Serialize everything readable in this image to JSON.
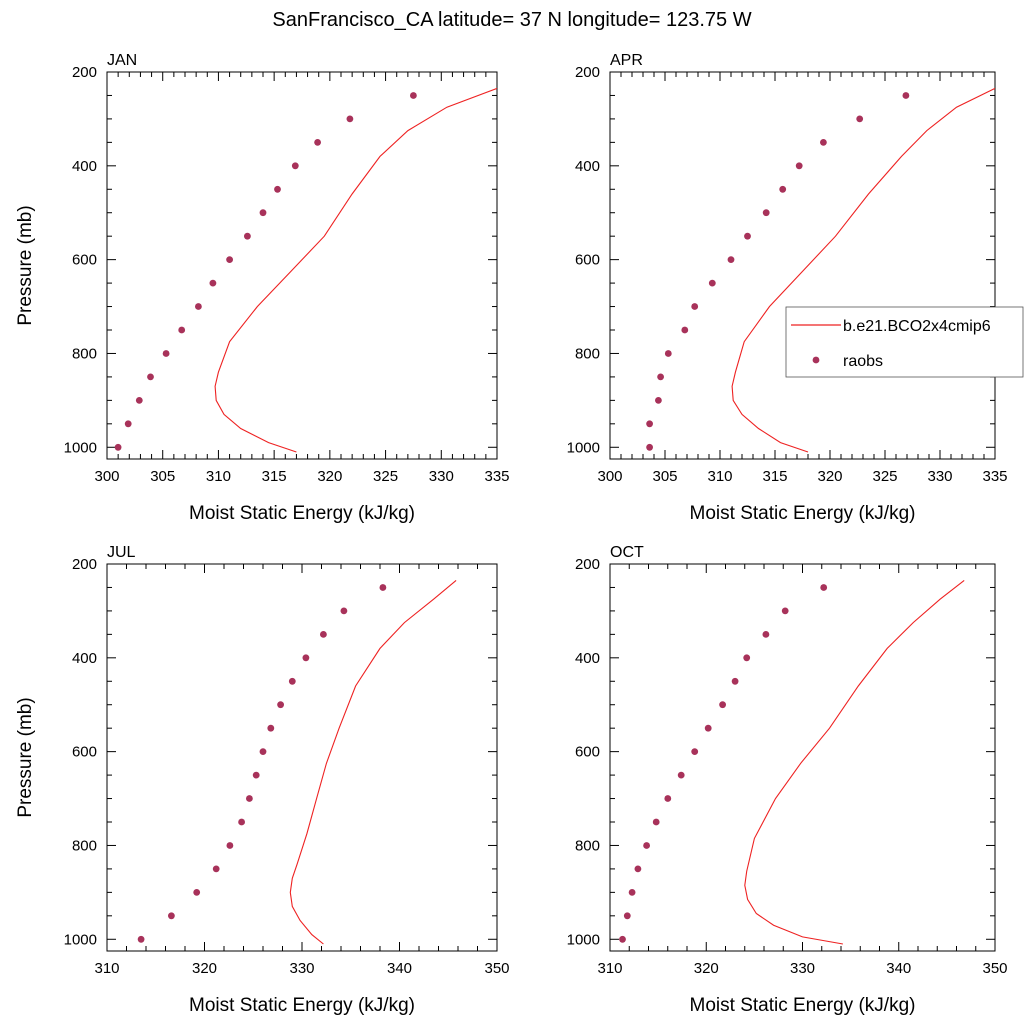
{
  "title": "SanFrancisco_CA  latitude= 37 N longitude= 123.75 W",
  "legend": {
    "entries": [
      {
        "label": "b.e21.BCO2x4cmip6",
        "kind": "line",
        "color": "#ee2222"
      },
      {
        "label": "raobs",
        "kind": "marker",
        "color": "#a8325a"
      }
    ]
  },
  "colors": {
    "model_line": "#ee2222",
    "raobs_marker": "#a8325a"
  },
  "chart_data": [
    {
      "type": "line",
      "title": "JAN",
      "xlabel": "Moist Static Energy (kJ/kg)",
      "ylabel": "Pressure (mb)",
      "xlim": [
        300,
        335
      ],
      "ylim": [
        1025,
        200
      ],
      "xticks": [
        300,
        305,
        310,
        315,
        320,
        325,
        330,
        335
      ],
      "yticks": [
        200,
        400,
        600,
        800,
        1000
      ],
      "series": [
        {
          "name": "b.e21.BCO2x4cmip6",
          "kind": "line",
          "x": [
            317,
            314.5,
            312,
            310.5,
            309.8,
            309.7,
            310.0,
            311.0,
            313.5,
            316.5,
            319.5,
            322.0,
            324.5,
            327.0,
            330.5,
            335.0
          ],
          "y": [
            1010,
            990,
            960,
            930,
            900,
            870,
            840,
            775,
            700,
            625,
            550,
            460,
            380,
            325,
            275,
            235
          ]
        },
        {
          "name": "raobs",
          "kind": "scatter",
          "x": [
            301.0,
            301.9,
            302.9,
            303.9,
            305.3,
            306.7,
            308.2,
            309.5,
            311.0,
            312.6,
            314.0,
            315.3,
            316.9,
            318.9,
            321.8,
            327.5
          ],
          "y": [
            1000,
            950,
            900,
            850,
            800,
            750,
            700,
            650,
            600,
            550,
            500,
            450,
            400,
            350,
            300,
            250
          ]
        }
      ]
    },
    {
      "type": "line",
      "title": "APR",
      "xlabel": "Moist Static Energy (kJ/kg)",
      "ylabel": "",
      "xlim": [
        300,
        335
      ],
      "ylim": [
        1025,
        200
      ],
      "xticks": [
        300,
        305,
        310,
        315,
        320,
        325,
        330,
        335
      ],
      "yticks": [
        200,
        400,
        600,
        800,
        1000
      ],
      "series": [
        {
          "name": "b.e21.BCO2x4cmip6",
          "kind": "line",
          "x": [
            318,
            315.5,
            313.5,
            312,
            311.2,
            311.1,
            311.4,
            312.2,
            314.5,
            317.5,
            320.5,
            323.5,
            326.5,
            328.8,
            331.5,
            335.0
          ],
          "y": [
            1010,
            990,
            960,
            930,
            900,
            870,
            840,
            775,
            700,
            625,
            550,
            460,
            380,
            325,
            275,
            235
          ]
        },
        {
          "name": "raobs",
          "kind": "scatter",
          "x": [
            303.6,
            303.6,
            304.4,
            304.6,
            305.3,
            306.8,
            307.7,
            309.3,
            311.0,
            312.5,
            314.2,
            315.7,
            317.2,
            319.4,
            322.7,
            326.9
          ],
          "y": [
            1000,
            950,
            900,
            850,
            800,
            750,
            700,
            650,
            600,
            550,
            500,
            450,
            400,
            350,
            300,
            250
          ]
        }
      ]
    },
    {
      "type": "line",
      "title": "JUL",
      "xlabel": "Moist Static Energy (kJ/kg)",
      "ylabel": "Pressure (mb)",
      "xlim": [
        310,
        350
      ],
      "ylim": [
        1025,
        200
      ],
      "xticks": [
        310,
        320,
        330,
        340,
        350
      ],
      "yticks": [
        200,
        400,
        600,
        800,
        1000
      ],
      "series": [
        {
          "name": "b.e21.BCO2x4cmip6",
          "kind": "line",
          "x": [
            332.2,
            331.0,
            329.8,
            329.0,
            328.8,
            329.0,
            329.5,
            330.5,
            331.5,
            332.5,
            333.8,
            335.5,
            338.0,
            340.5,
            343.5,
            345.8
          ],
          "y": [
            1010,
            990,
            960,
            930,
            900,
            870,
            840,
            775,
            700,
            625,
            550,
            460,
            380,
            325,
            275,
            235
          ]
        },
        {
          "name": "raobs",
          "kind": "scatter",
          "x": [
            313.5,
            316.6,
            319.2,
            321.2,
            322.6,
            323.8,
            324.6,
            325.3,
            326.0,
            326.8,
            327.8,
            329.0,
            330.4,
            332.2,
            334.3,
            338.3
          ],
          "y": [
            1000,
            950,
            900,
            850,
            800,
            750,
            700,
            650,
            600,
            550,
            500,
            450,
            400,
            350,
            300,
            250
          ]
        }
      ]
    },
    {
      "type": "line",
      "title": "OCT",
      "xlabel": "Moist Static Energy (kJ/kg)",
      "ylabel": "",
      "xlim": [
        310,
        350
      ],
      "ylim": [
        1025,
        200
      ],
      "xticks": [
        310,
        320,
        330,
        340,
        350
      ],
      "yticks": [
        200,
        400,
        600,
        800,
        1000
      ],
      "series": [
        {
          "name": "b.e21.BCO2x4cmip6",
          "kind": "line",
          "x": [
            334.2,
            330.0,
            327.0,
            325.2,
            324.3,
            324.0,
            324.2,
            325.0,
            327.2,
            329.8,
            332.8,
            335.8,
            338.8,
            341.5,
            344.3,
            346.8
          ],
          "y": [
            1010,
            995,
            970,
            945,
            915,
            885,
            855,
            785,
            700,
            625,
            550,
            460,
            380,
            325,
            275,
            235
          ]
        },
        {
          "name": "raobs",
          "kind": "scatter",
          "x": [
            311.3,
            311.8,
            312.3,
            312.9,
            313.8,
            314.8,
            316.0,
            317.4,
            318.8,
            320.2,
            321.7,
            323.0,
            324.2,
            326.2,
            328.2,
            332.2
          ],
          "y": [
            1000,
            950,
            900,
            850,
            800,
            750,
            700,
            650,
            600,
            550,
            500,
            450,
            400,
            350,
            300,
            250
          ]
        }
      ]
    }
  ]
}
